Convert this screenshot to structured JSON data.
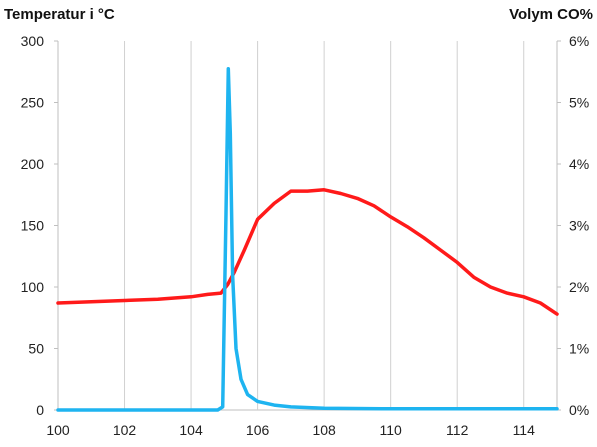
{
  "chart_data": {
    "type": "line",
    "title": "",
    "y_left_label": "Temperatur i °C",
    "y_right_label": "Volym CO%",
    "xlim": [
      100,
      115
    ],
    "x_ticks": [
      "100",
      "102",
      "104",
      "106",
      "108",
      "110",
      "112",
      "114"
    ],
    "x_tick_values": [
      100,
      102,
      104,
      106,
      108,
      110,
      112,
      114
    ],
    "ylim_left": [
      0,
      300
    ],
    "y_left_ticks": [
      "0",
      "50",
      "100",
      "150",
      "200",
      "250",
      "300"
    ],
    "y_left_tick_values": [
      0,
      50,
      100,
      150,
      200,
      250,
      300
    ],
    "ylim_right": [
      0,
      6
    ],
    "y_right_ticks": [
      "0%",
      "1%",
      "2%",
      "3%",
      "4%",
      "5%",
      "6%"
    ],
    "y_right_tick_values": [
      0,
      1,
      2,
      3,
      4,
      5,
      6
    ],
    "grid": "vertical lines at x ticks",
    "series": [
      {
        "axis": "left",
        "color": "#ff1a1a",
        "x": [
          100.0,
          101.0,
          102.0,
          103.0,
          104.0,
          104.5,
          104.9,
          105.1,
          105.3,
          105.6,
          106.0,
          106.5,
          107.0,
          107.5,
          108.0,
          108.5,
          109.0,
          109.5,
          110.0,
          110.5,
          111.0,
          111.5,
          112.0,
          112.5,
          113.0,
          113.5,
          114.0,
          114.5,
          115.0
        ],
        "values": [
          87,
          88,
          89,
          90,
          92,
          94,
          95,
          102,
          112,
          130,
          155,
          168,
          178,
          178,
          179,
          176,
          172,
          166,
          157,
          149,
          140,
          130,
          120,
          108,
          100,
          95,
          92,
          87,
          78
        ]
      },
      {
        "axis": "right",
        "color": "#1eb4f0",
        "x": [
          100.0,
          104.8,
          104.95,
          105.05,
          105.12,
          105.18,
          105.25,
          105.35,
          105.5,
          105.7,
          106.0,
          106.5,
          107.0,
          108.0,
          110.0,
          112.0,
          115.0
        ],
        "values": [
          0,
          0,
          0.05,
          3.2,
          5.55,
          4.5,
          2.2,
          1.0,
          0.5,
          0.25,
          0.14,
          0.08,
          0.05,
          0.03,
          0.02,
          0.02,
          0.02
        ]
      }
    ]
  }
}
